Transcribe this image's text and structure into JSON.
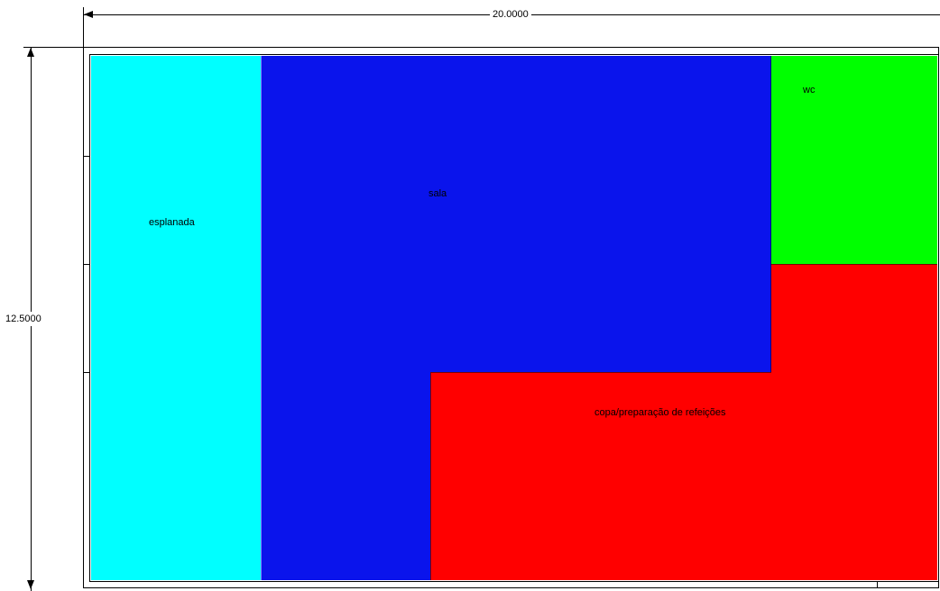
{
  "dimensions": {
    "width_label": "20.0000",
    "height_label": "12.5000"
  },
  "rooms": {
    "esplanada": {
      "label": "esplanada",
      "color": "#00ffff"
    },
    "sala": {
      "label": "sala",
      "color": "#0a14ec"
    },
    "wc": {
      "label": "wc",
      "color": "#00ff00"
    },
    "copa": {
      "label": "copa/preparação de refeições",
      "color": "#ff0000"
    }
  }
}
